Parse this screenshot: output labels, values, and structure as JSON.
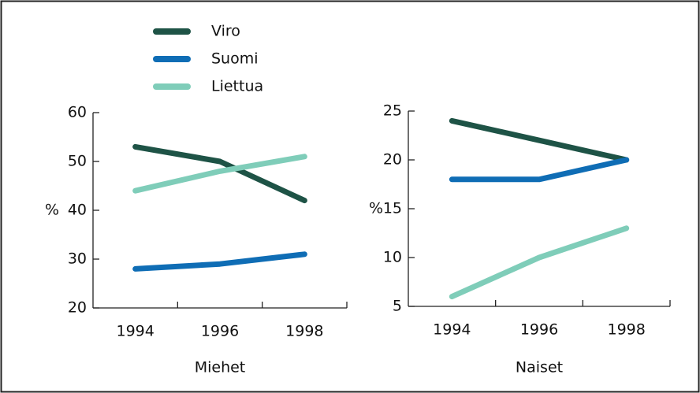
{
  "chart_data": [
    {
      "type": "line",
      "x_label": "Miehet",
      "y_label": "%",
      "categories": [
        "1994",
        "1996",
        "1998"
      ],
      "ylim": [
        20,
        60
      ],
      "yticks": [
        20,
        30,
        40,
        50,
        60
      ],
      "series": [
        {
          "name": "Viro",
          "color": "#1e5346",
          "values": [
            53,
            50,
            42
          ]
        },
        {
          "name": "Suomi",
          "color": "#0f6db5",
          "values": [
            28,
            29,
            31
          ]
        },
        {
          "name": "Liettua",
          "color": "#7fcdb9",
          "values": [
            44,
            48,
            51
          ]
        }
      ]
    },
    {
      "type": "line",
      "x_label": "Naiset",
      "y_label": "%",
      "categories": [
        "1994",
        "1996",
        "1998"
      ],
      "ylim": [
        5,
        25
      ],
      "yticks": [
        5,
        10,
        15,
        20,
        25
      ],
      "series": [
        {
          "color": "#1e5346",
          "values": [
            24,
            22,
            20
          ]
        },
        {
          "color": "#0f6db5",
          "values": [
            18,
            18,
            20
          ]
        },
        {
          "color": "#7fcdb9",
          "values": [
            6,
            10,
            13
          ]
        }
      ]
    }
  ]
}
